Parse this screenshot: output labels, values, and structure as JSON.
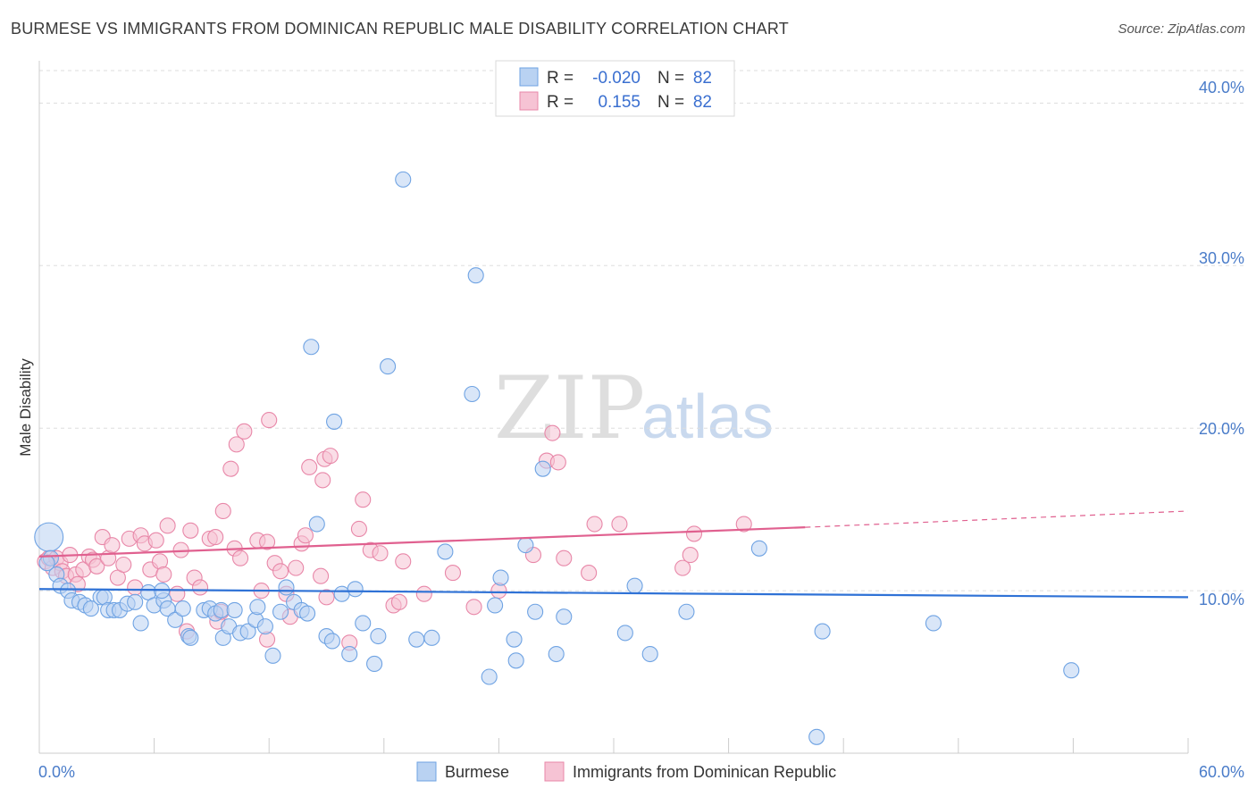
{
  "header": {
    "title": "BURMESE VS IMMIGRANTS FROM DOMINICAN REPUBLIC MALE DISABILITY CORRELATION CHART",
    "source": "Source: ZipAtlas.com"
  },
  "colors": {
    "blue": "#6fa3e3",
    "blue_fill": "#b9d2f2",
    "blue_line": "#2f72d6",
    "pink": "#e887a8",
    "pink_fill": "#f6c3d4",
    "pink_line": "#e0608f",
    "tick_text": "#4a7cc9"
  },
  "legend_top": {
    "r_label": "R =",
    "n_label": "N =",
    "rows": [
      {
        "series": "Burmese",
        "r": "-0.020",
        "n": "82"
      },
      {
        "series": "Immigrants from Dominican Republic",
        "r": "0.155",
        "n": "82"
      }
    ]
  },
  "watermark": {
    "zip": "ZIP",
    "atlas": "atlas"
  },
  "chart_data": {
    "type": "scatter",
    "title": "BURMESE VS IMMIGRANTS FROM DOMINICAN REPUBLIC MALE DISABILITY CORRELATION CHART",
    "xlabel": "",
    "ylabel": "Male Disability",
    "xlim": [
      0,
      60
    ],
    "ylim": [
      0,
      42
    ],
    "x_tick_labels": [
      "0.0%",
      "60.0%"
    ],
    "y_ticks": [
      10,
      20,
      30,
      40
    ],
    "y_tick_labels": [
      "10.0%",
      "20.0%",
      "30.0%",
      "40.0%"
    ],
    "legend": [
      "Burmese",
      "Immigrants from Dominican Republic"
    ],
    "series": [
      {
        "name": "Burmese",
        "r": -0.02,
        "n": 82,
        "trend": {
          "x": [
            0,
            60
          ],
          "y": [
            10.1,
            9.6
          ]
        },
        "points": [
          {
            "x": 0.5,
            "y": 13.3,
            "s": 3
          },
          {
            "x": 0.6,
            "y": 12.0
          },
          {
            "x": 0.9,
            "y": 11.0
          },
          {
            "x": 1.1,
            "y": 10.3
          },
          {
            "x": 1.5,
            "y": 10.0
          },
          {
            "x": 1.7,
            "y": 9.4
          },
          {
            "x": 2.1,
            "y": 9.3
          },
          {
            "x": 2.4,
            "y": 9.1
          },
          {
            "x": 2.7,
            "y": 8.9
          },
          {
            "x": 3.2,
            "y": 9.6
          },
          {
            "x": 3.4,
            "y": 9.6
          },
          {
            "x": 3.6,
            "y": 8.8
          },
          {
            "x": 3.9,
            "y": 8.8
          },
          {
            "x": 4.2,
            "y": 8.8
          },
          {
            "x": 4.6,
            "y": 9.2
          },
          {
            "x": 5.0,
            "y": 9.3
          },
          {
            "x": 5.3,
            "y": 8.0
          },
          {
            "x": 5.7,
            "y": 9.9
          },
          {
            "x": 6.0,
            "y": 9.1
          },
          {
            "x": 6.5,
            "y": 9.4
          },
          {
            "x": 6.4,
            "y": 10.0
          },
          {
            "x": 6.7,
            "y": 8.9
          },
          {
            "x": 7.1,
            "y": 8.2
          },
          {
            "x": 7.5,
            "y": 8.9
          },
          {
            "x": 7.8,
            "y": 7.2
          },
          {
            "x": 7.9,
            "y": 7.1
          },
          {
            "x": 8.6,
            "y": 8.8
          },
          {
            "x": 8.9,
            "y": 8.9
          },
          {
            "x": 9.2,
            "y": 8.6
          },
          {
            "x": 9.5,
            "y": 8.8
          },
          {
            "x": 9.6,
            "y": 7.1
          },
          {
            "x": 9.9,
            "y": 7.8
          },
          {
            "x": 10.2,
            "y": 8.8
          },
          {
            "x": 10.5,
            "y": 7.4
          },
          {
            "x": 10.9,
            "y": 7.5
          },
          {
            "x": 11.3,
            "y": 8.2
          },
          {
            "x": 11.4,
            "y": 9.0
          },
          {
            "x": 11.8,
            "y": 7.8
          },
          {
            "x": 12.2,
            "y": 6.0
          },
          {
            "x": 12.6,
            "y": 8.7
          },
          {
            "x": 12.9,
            "y": 10.2
          },
          {
            "x": 13.3,
            "y": 9.3
          },
          {
            "x": 13.7,
            "y": 8.8
          },
          {
            "x": 14.0,
            "y": 8.6
          },
          {
            "x": 14.2,
            "y": 25.0
          },
          {
            "x": 14.5,
            "y": 14.1
          },
          {
            "x": 15.0,
            "y": 7.2
          },
          {
            "x": 15.3,
            "y": 6.9
          },
          {
            "x": 15.4,
            "y": 20.4
          },
          {
            "x": 15.8,
            "y": 9.8
          },
          {
            "x": 16.2,
            "y": 6.1
          },
          {
            "x": 16.5,
            "y": 10.1
          },
          {
            "x": 16.9,
            "y": 8.0
          },
          {
            "x": 17.5,
            "y": 5.5
          },
          {
            "x": 17.7,
            "y": 7.2
          },
          {
            "x": 18.2,
            "y": 23.8
          },
          {
            "x": 19.0,
            "y": 35.3
          },
          {
            "x": 19.7,
            "y": 7.0
          },
          {
            "x": 20.5,
            "y": 7.1
          },
          {
            "x": 21.2,
            "y": 12.4
          },
          {
            "x": 22.6,
            "y": 22.1
          },
          {
            "x": 22.8,
            "y": 29.4
          },
          {
            "x": 23.5,
            "y": 4.7
          },
          {
            "x": 23.8,
            "y": 9.1
          },
          {
            "x": 24.1,
            "y": 10.8
          },
          {
            "x": 24.8,
            "y": 7.0
          },
          {
            "x": 24.9,
            "y": 5.7
          },
          {
            "x": 25.4,
            "y": 12.8
          },
          {
            "x": 25.9,
            "y": 8.7
          },
          {
            "x": 26.3,
            "y": 17.5
          },
          {
            "x": 27.0,
            "y": 6.1
          },
          {
            "x": 27.4,
            "y": 8.4
          },
          {
            "x": 30.6,
            "y": 7.4
          },
          {
            "x": 31.1,
            "y": 10.3
          },
          {
            "x": 31.9,
            "y": 6.1
          },
          {
            "x": 33.8,
            "y": 8.7
          },
          {
            "x": 37.6,
            "y": 12.6
          },
          {
            "x": 40.6,
            "y": 1.0
          },
          {
            "x": 40.9,
            "y": 7.5
          },
          {
            "x": 46.7,
            "y": 8.0
          },
          {
            "x": 53.9,
            "y": 5.1
          },
          {
            "x": 0.4,
            "y": 11.7
          }
        ]
      },
      {
        "name": "Immigrants from Dominican Republic",
        "r": 0.155,
        "n": 82,
        "trend_solid": {
          "x": [
            0,
            40
          ],
          "y": [
            12.1,
            13.9
          ]
        },
        "trend_dashed": {
          "x": [
            40,
            60
          ],
          "y": [
            13.9,
            14.9
          ]
        },
        "points": [
          {
            "x": 0.3,
            "y": 11.8
          },
          {
            "x": 0.5,
            "y": 12.0
          },
          {
            "x": 0.7,
            "y": 11.4
          },
          {
            "x": 0.9,
            "y": 12.0
          },
          {
            "x": 1.1,
            "y": 11.7
          },
          {
            "x": 1.2,
            "y": 11.2
          },
          {
            "x": 1.4,
            "y": 10.9
          },
          {
            "x": 1.6,
            "y": 12.2
          },
          {
            "x": 1.9,
            "y": 11.0
          },
          {
            "x": 2.0,
            "y": 10.4
          },
          {
            "x": 2.3,
            "y": 11.3
          },
          {
            "x": 2.6,
            "y": 12.1
          },
          {
            "x": 2.8,
            "y": 11.9
          },
          {
            "x": 3.0,
            "y": 11.5
          },
          {
            "x": 3.3,
            "y": 13.3
          },
          {
            "x": 3.6,
            "y": 12.0
          },
          {
            "x": 3.8,
            "y": 12.8
          },
          {
            "x": 4.1,
            "y": 10.8
          },
          {
            "x": 4.4,
            "y": 11.6
          },
          {
            "x": 4.7,
            "y": 13.2
          },
          {
            "x": 5.0,
            "y": 10.2
          },
          {
            "x": 5.3,
            "y": 13.4
          },
          {
            "x": 5.5,
            "y": 12.9
          },
          {
            "x": 5.8,
            "y": 11.3
          },
          {
            "x": 6.1,
            "y": 13.1
          },
          {
            "x": 6.3,
            "y": 11.8
          },
          {
            "x": 6.5,
            "y": 11.0
          },
          {
            "x": 6.7,
            "y": 14.0
          },
          {
            "x": 7.2,
            "y": 9.8
          },
          {
            "x": 7.4,
            "y": 12.5
          },
          {
            "x": 7.7,
            "y": 7.5
          },
          {
            "x": 7.9,
            "y": 13.7
          },
          {
            "x": 8.1,
            "y": 10.8
          },
          {
            "x": 8.4,
            "y": 10.2
          },
          {
            "x": 8.9,
            "y": 13.2
          },
          {
            "x": 9.2,
            "y": 13.3
          },
          {
            "x": 9.3,
            "y": 8.1
          },
          {
            "x": 9.5,
            "y": 8.7
          },
          {
            "x": 9.6,
            "y": 14.9
          },
          {
            "x": 10.0,
            "y": 17.5
          },
          {
            "x": 10.2,
            "y": 12.6
          },
          {
            "x": 10.3,
            "y": 19.0
          },
          {
            "x": 10.5,
            "y": 12.0
          },
          {
            "x": 10.7,
            "y": 19.8
          },
          {
            "x": 11.4,
            "y": 13.1
          },
          {
            "x": 11.6,
            "y": 10.0
          },
          {
            "x": 11.9,
            "y": 13.0
          },
          {
            "x": 11.9,
            "y": 7.0
          },
          {
            "x": 12.0,
            "y": 20.5
          },
          {
            "x": 12.3,
            "y": 11.7
          },
          {
            "x": 12.6,
            "y": 11.2
          },
          {
            "x": 12.9,
            "y": 9.8
          },
          {
            "x": 13.1,
            "y": 8.4
          },
          {
            "x": 13.4,
            "y": 11.4
          },
          {
            "x": 13.7,
            "y": 12.9
          },
          {
            "x": 13.9,
            "y": 13.4
          },
          {
            "x": 14.1,
            "y": 17.6
          },
          {
            "x": 14.7,
            "y": 10.9
          },
          {
            "x": 14.8,
            "y": 16.8
          },
          {
            "x": 14.9,
            "y": 18.1
          },
          {
            "x": 15.0,
            "y": 9.6
          },
          {
            "x": 15.2,
            "y": 18.3
          },
          {
            "x": 16.2,
            "y": 6.8
          },
          {
            "x": 16.7,
            "y": 13.8
          },
          {
            "x": 16.9,
            "y": 15.6
          },
          {
            "x": 17.3,
            "y": 12.5
          },
          {
            "x": 17.8,
            "y": 12.3
          },
          {
            "x": 18.5,
            "y": 9.1
          },
          {
            "x": 18.8,
            "y": 9.3
          },
          {
            "x": 19.0,
            "y": 11.8
          },
          {
            "x": 20.1,
            "y": 9.8
          },
          {
            "x": 21.6,
            "y": 11.1
          },
          {
            "x": 22.7,
            "y": 9.0
          },
          {
            "x": 24.0,
            "y": 10.0
          },
          {
            "x": 25.8,
            "y": 12.2
          },
          {
            "x": 26.5,
            "y": 18.0
          },
          {
            "x": 26.8,
            "y": 19.7
          },
          {
            "x": 27.1,
            "y": 17.9
          },
          {
            "x": 28.7,
            "y": 11.1
          },
          {
            "x": 29.0,
            "y": 14.1
          },
          {
            "x": 30.3,
            "y": 14.1
          },
          {
            "x": 33.6,
            "y": 11.4
          }
        ]
      }
    ]
  },
  "extra_pink": [
    {
      "x": 34.0,
      "y": 12.2
    },
    {
      "x": 34.2,
      "y": 13.5
    },
    {
      "x": 36.8,
      "y": 14.1
    },
    {
      "x": 27.4,
      "y": 12.0
    }
  ],
  "bottom_legend": [
    {
      "label": "Burmese"
    },
    {
      "label": "Immigrants from Dominican Republic"
    }
  ]
}
